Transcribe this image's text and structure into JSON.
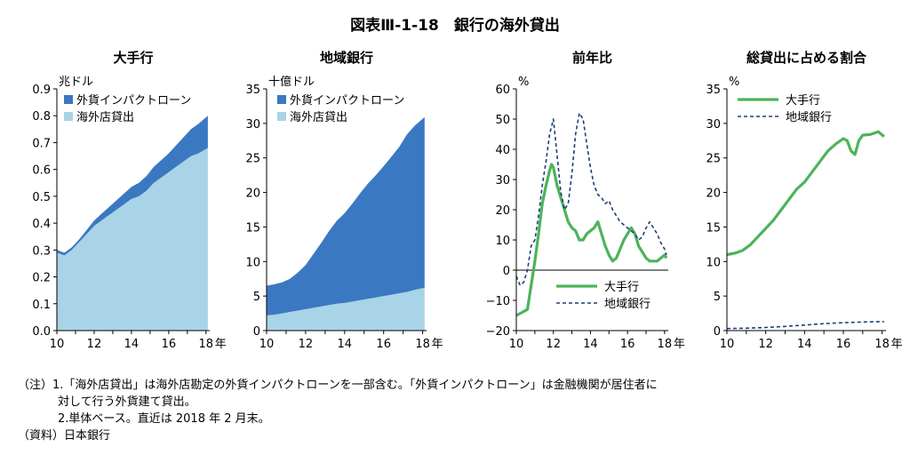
{
  "figure_title": "図表Ⅲ-1-18　銀行の海外貸出",
  "chart_data": [
    {
      "id": "major",
      "type": "area",
      "title": "大手行",
      "unit_label": "兆ドル",
      "xlabel": "年",
      "x_ticks": [
        "10",
        "12",
        "14",
        "16",
        "18"
      ],
      "xlim": [
        10,
        18.2
      ],
      "ylim": [
        0,
        0.9
      ],
      "y_ticks": [
        "0.0",
        "0.1",
        "0.2",
        "0.3",
        "0.4",
        "0.5",
        "0.6",
        "0.7",
        "0.8",
        "0.9"
      ],
      "stacked": true,
      "series": [
        {
          "name": "外貨インパクトローン",
          "color": "#3b78c2",
          "x": [
            10,
            10.4,
            10.8,
            11.2,
            11.6,
            12,
            12.4,
            12.8,
            13.2,
            13.6,
            14,
            14.4,
            14.8,
            15.2,
            15.6,
            16,
            16.4,
            16.8,
            17.2,
            17.6,
            18.1
          ],
          "values": [
            0.01,
            0.01,
            0.01,
            0.01,
            0.015,
            0.02,
            0.025,
            0.03,
            0.035,
            0.04,
            0.045,
            0.05,
            0.055,
            0.06,
            0.065,
            0.07,
            0.08,
            0.09,
            0.1,
            0.11,
            0.12
          ]
        },
        {
          "name": "海外店貸出",
          "color": "#a9d3e6",
          "x": [
            10,
            10.4,
            10.8,
            11.2,
            11.6,
            12,
            12.4,
            12.8,
            13.2,
            13.6,
            14,
            14.4,
            14.8,
            15.2,
            15.6,
            16,
            16.4,
            16.8,
            17.2,
            17.6,
            18.1
          ],
          "values": [
            0.29,
            0.28,
            0.3,
            0.33,
            0.36,
            0.39,
            0.41,
            0.43,
            0.45,
            0.47,
            0.49,
            0.5,
            0.52,
            0.55,
            0.57,
            0.59,
            0.61,
            0.63,
            0.65,
            0.66,
            0.68
          ]
        }
      ]
    },
    {
      "id": "regional",
      "type": "area",
      "title": "地域銀行",
      "unit_label": "十億ドル",
      "xlabel": "年",
      "x_ticks": [
        "10",
        "12",
        "14",
        "16",
        "18"
      ],
      "xlim": [
        10,
        18.2
      ],
      "ylim": [
        0,
        35
      ],
      "y_ticks": [
        "0",
        "5",
        "10",
        "15",
        "20",
        "25",
        "30",
        "35"
      ],
      "stacked": true,
      "series": [
        {
          "name": "外貨インパクトローン",
          "color": "#3b78c2",
          "x": [
            10,
            10.4,
            10.8,
            11.2,
            11.6,
            12,
            12.4,
            12.8,
            13.2,
            13.6,
            14,
            14.4,
            14.8,
            15.2,
            15.6,
            16,
            16.4,
            16.8,
            17.2,
            17.6,
            18.1
          ],
          "values": [
            4.3,
            4.4,
            4.5,
            4.8,
            5.5,
            6.4,
            7.8,
            9.2,
            10.7,
            12.0,
            13.0,
            14.2,
            15.5,
            16.7,
            17.7,
            18.8,
            20.0,
            21.2,
            22.8,
            23.8,
            24.7
          ]
        },
        {
          "name": "海外店貸出",
          "color": "#a9d3e6",
          "x": [
            10,
            10.4,
            10.8,
            11.2,
            11.6,
            12,
            12.4,
            12.8,
            13.2,
            13.6,
            14,
            14.4,
            14.8,
            15.2,
            15.6,
            16,
            16.4,
            16.8,
            17.2,
            17.6,
            18.1
          ],
          "values": [
            2.2,
            2.3,
            2.5,
            2.7,
            2.9,
            3.1,
            3.3,
            3.5,
            3.7,
            3.9,
            4.0,
            4.2,
            4.4,
            4.6,
            4.8,
            5.0,
            5.2,
            5.4,
            5.6,
            5.9,
            6.2
          ]
        }
      ]
    },
    {
      "id": "yoy",
      "type": "line",
      "title": "前年比",
      "unit_label": "%",
      "xlabel": "年",
      "x_ticks": [
        "10",
        "12",
        "14",
        "16",
        "18"
      ],
      "xlim": [
        10,
        18.2
      ],
      "ylim": [
        -20,
        60
      ],
      "y_ticks": [
        "−20",
        "−10",
        "0",
        "10",
        "20",
        "30",
        "40",
        "50",
        "60"
      ],
      "zero_line": true,
      "series": [
        {
          "name": "大手行",
          "color": "#4db35a",
          "style": "solid",
          "x": [
            10,
            10.3,
            10.6,
            10.8,
            11.0,
            11.2,
            11.4,
            11.6,
            11.8,
            11.9,
            12.0,
            12.2,
            12.4,
            12.6,
            12.8,
            13.0,
            13.2,
            13.4,
            13.6,
            13.8,
            14.0,
            14.2,
            14.4,
            14.6,
            14.8,
            15.0,
            15.2,
            15.4,
            15.6,
            15.8,
            16.0,
            16.2,
            16.4,
            16.6,
            16.8,
            17.0,
            17.2,
            17.4,
            17.6,
            17.8,
            18.0,
            18.1
          ],
          "values": [
            -15,
            -14,
            -13,
            -5,
            3,
            12,
            22,
            28,
            33,
            35,
            34,
            28,
            24,
            20,
            16,
            14,
            13,
            10,
            10,
            12,
            13,
            14,
            16,
            12,
            8,
            5,
            3,
            4,
            7,
            10,
            12,
            14,
            12,
            8,
            6,
            4,
            3,
            3,
            3,
            4,
            5,
            4
          ]
        },
        {
          "name": "地域銀行",
          "color": "#1e3f7a",
          "style": "dashed",
          "x": [
            10,
            10.2,
            10.4,
            10.6,
            10.8,
            11.0,
            11.2,
            11.4,
            11.6,
            11.8,
            12.0,
            12.2,
            12.4,
            12.6,
            12.8,
            13.0,
            13.2,
            13.4,
            13.6,
            13.8,
            14.0,
            14.2,
            14.4,
            14.6,
            14.8,
            15.0,
            15.2,
            15.4,
            15.6,
            15.8,
            16.0,
            16.2,
            16.4,
            16.6,
            16.8,
            17.0,
            17.2,
            17.4,
            17.6,
            17.8,
            18.0,
            18.1
          ],
          "values": [
            -2,
            -5,
            -4,
            0,
            8,
            10,
            18,
            28,
            36,
            45,
            50,
            38,
            26,
            20,
            22,
            32,
            45,
            52,
            50,
            42,
            34,
            28,
            25,
            24,
            22,
            23,
            20,
            18,
            16,
            15,
            14,
            13,
            12,
            10,
            11,
            14,
            16,
            14,
            12,
            9,
            7,
            5
          ]
        }
      ]
    },
    {
      "id": "share",
      "type": "line",
      "title": "総貸出に占める割合",
      "unit_label": "%",
      "xlabel": "年",
      "x_ticks": [
        "10",
        "12",
        "14",
        "16",
        "18"
      ],
      "xlim": [
        10,
        18.2
      ],
      "ylim": [
        0,
        35
      ],
      "y_ticks": [
        "0",
        "5",
        "10",
        "15",
        "20",
        "25",
        "30",
        "35"
      ],
      "series": [
        {
          "name": "大手行",
          "color": "#4db35a",
          "style": "solid",
          "x": [
            10,
            10.4,
            10.8,
            11.2,
            11.6,
            12,
            12.4,
            12.8,
            13.2,
            13.6,
            14,
            14.4,
            14.8,
            15.2,
            15.6,
            16,
            16.2,
            16.4,
            16.6,
            16.8,
            17.0,
            17.4,
            17.8,
            18.1
          ],
          "values": [
            11,
            11.2,
            11.6,
            12.4,
            13.6,
            14.8,
            16,
            17.5,
            19,
            20.5,
            21.5,
            23,
            24.5,
            26,
            27,
            27.8,
            27.5,
            26,
            25.5,
            27.5,
            28.3,
            28.4,
            28.8,
            28.1
          ]
        },
        {
          "name": "地域銀行",
          "color": "#1e3f7a",
          "style": "dashed",
          "x": [
            10,
            11,
            12,
            13,
            14,
            15,
            16,
            17,
            18.1
          ],
          "values": [
            0.3,
            0.35,
            0.45,
            0.6,
            0.8,
            1.0,
            1.15,
            1.25,
            1.3
          ]
        }
      ]
    }
  ],
  "notes": {
    "line1": "（注）1.「海外店貸出」は海外店勘定の外貨インパクトローンを一部含む。「外貨インパクトローン」は金融機関が居住者に",
    "line2": "対して行う外貨建て貸出。",
    "line3": "2.単体ベース。直近は 2018 年 2 月末。",
    "source": "（資料）日本銀行"
  }
}
